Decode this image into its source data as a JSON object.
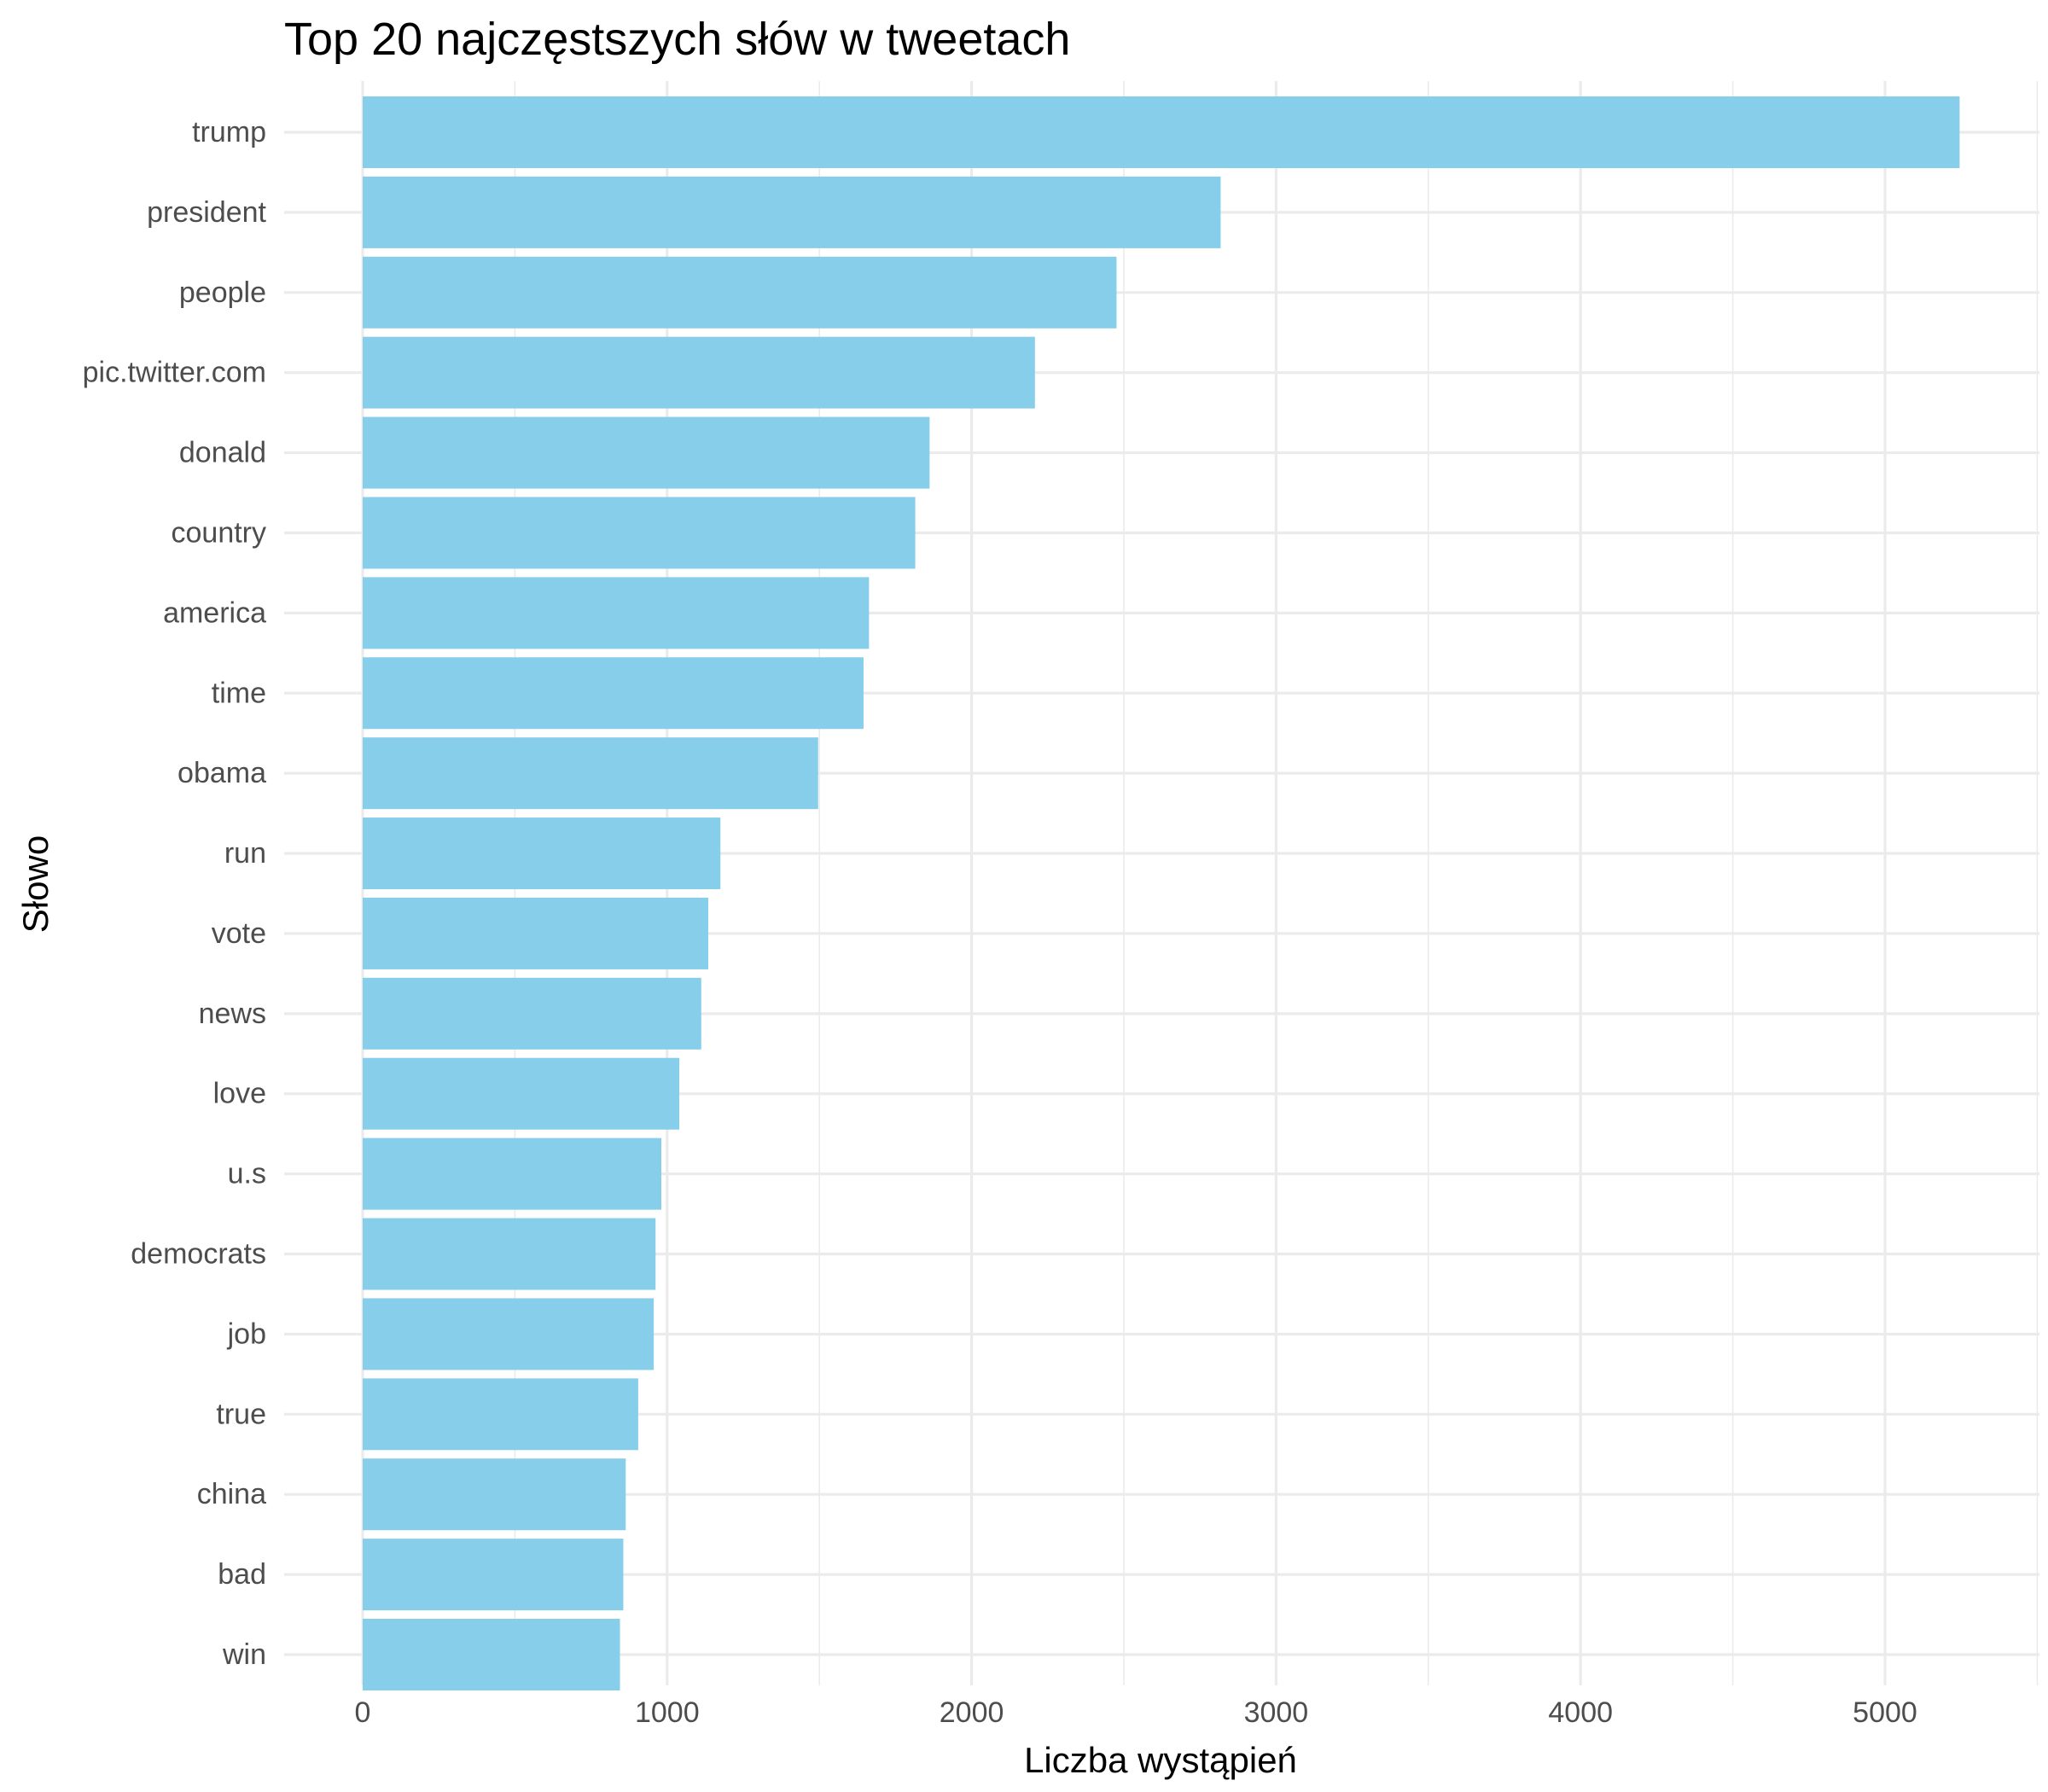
{
  "chart_data": {
    "type": "bar",
    "orientation": "horizontal",
    "title": "Top 20 najczęstszych słów w tweetach",
    "xlabel": "Liczba wystąpień",
    "ylabel": "Słowo",
    "categories": [
      "trump",
      "president",
      "people",
      "pic.twitter.com",
      "donald",
      "country",
      "america",
      "time",
      "obama",
      "run",
      "vote",
      "news",
      "love",
      "u.s",
      "democrats",
      "job",
      "true",
      "china",
      "bad",
      "win"
    ],
    "values": [
      5245,
      2818,
      2476,
      2208,
      1862,
      1815,
      1663,
      1645,
      1496,
      1175,
      1135,
      1112,
      1040,
      981,
      962,
      956,
      905,
      864,
      856,
      845
    ],
    "xlim": [
      0,
      5500
    ],
    "xticks": [
      0,
      1000,
      2000,
      3000,
      4000,
      5000
    ],
    "xtick_labels": [
      "0",
      "1000",
      "2000",
      "3000",
      "4000",
      "5000"
    ],
    "bar_color": "#87CEEB",
    "grid": true,
    "legend": "none"
  }
}
